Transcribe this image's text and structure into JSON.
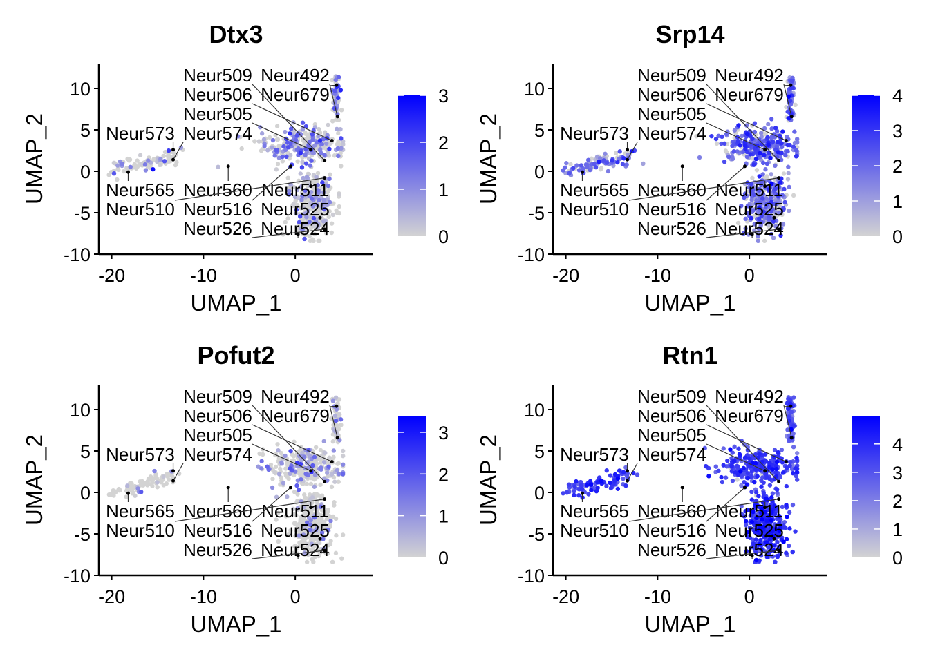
{
  "chart_data": [
    {
      "type": "scatter",
      "title": "Dtx3",
      "xlabel": "UMAP_1",
      "ylabel": "UMAP_2",
      "xlim": [
        -21.4,
        8.5
      ],
      "ylim": [
        -10,
        13
      ],
      "xticks": [
        -20,
        -10,
        0
      ],
      "yticks": [
        -10,
        -5,
        0,
        5,
        10
      ],
      "color_min": "#d3d3d3",
      "color_max": "#0000ff",
      "legend_ticks": [
        0,
        1,
        2,
        3
      ],
      "legend_max": 3.0,
      "legend": "right",
      "expression": {
        "arm": 0.5,
        "center": 0.9,
        "stalk": 0.9,
        "lower": 0.5
      },
      "density": {
        "arm": 0.35,
        "center": 0.6,
        "stalk": 0.6,
        "lower": 0.35
      }
    },
    {
      "type": "scatter",
      "title": "Srp14",
      "xlabel": "UMAP_1",
      "ylabel": "UMAP_2",
      "xlim": [
        -21.4,
        8.5
      ],
      "ylim": [
        -10,
        13
      ],
      "xticks": [
        -20,
        -10,
        0
      ],
      "yticks": [
        -10,
        -5,
        0,
        5,
        10
      ],
      "color_min": "#d3d3d3",
      "color_max": "#0000ff",
      "legend_ticks": [
        0,
        1,
        2,
        3,
        4
      ],
      "legend_max": 4.0,
      "legend": "right",
      "expression": {
        "arm": 1.8,
        "center": 2.2,
        "stalk": 2.0,
        "lower": 1.6
      },
      "density": {
        "arm": 0.75,
        "center": 0.85,
        "stalk": 0.8,
        "lower": 0.7
      }
    },
    {
      "type": "scatter",
      "title": "Pofut2",
      "xlabel": "UMAP_1",
      "ylabel": "UMAP_2",
      "xlim": [
        -21.4,
        8.5
      ],
      "ylim": [
        -10,
        13
      ],
      "xticks": [
        -20,
        -10,
        0
      ],
      "yticks": [
        -10,
        -5,
        0,
        5,
        10
      ],
      "color_min": "#d3d3d3",
      "color_max": "#0000ff",
      "legend_ticks": [
        0,
        1,
        2,
        3
      ],
      "legend_max": 3.38,
      "legend": "right",
      "expression": {
        "arm": 0.8,
        "center": 0.8,
        "stalk": 0.6,
        "lower": 0.6
      },
      "density": {
        "arm": 0.2,
        "center": 0.35,
        "stalk": 0.2,
        "lower": 0.15
      }
    },
    {
      "type": "scatter",
      "title": "Rtn1",
      "xlabel": "UMAP_1",
      "ylabel": "UMAP_2",
      "xlim": [
        -21.4,
        8.5
      ],
      "ylim": [
        -10,
        13
      ],
      "xticks": [
        -20,
        -10,
        0
      ],
      "yticks": [
        -10,
        -5,
        0,
        5,
        10
      ],
      "color_min": "#d3d3d3",
      "color_max": "#0000ff",
      "legend_ticks": [
        0,
        1,
        2,
        3,
        4
      ],
      "legend_max": 4.97,
      "legend": "right",
      "expression": {
        "arm": 3.3,
        "center": 3.3,
        "stalk": 3.0,
        "lower": 3.6
      },
      "density": {
        "arm": 0.97,
        "center": 0.97,
        "stalk": 0.95,
        "lower": 0.99
      }
    }
  ],
  "cluster_labels": [
    {
      "label": "Neur679",
      "x": 4.5,
      "y": 10.4
    },
    {
      "label": "Neur492",
      "x": 4.6,
      "y": 6.6
    },
    {
      "label": "Neur506",
      "x": 4.0,
      "y": 3.7
    },
    {
      "label": "Neur505",
      "x": 1.7,
      "y": 2.6
    },
    {
      "label": "Neur509",
      "x": 3.2,
      "y": 1.3
    },
    {
      "label": "Neur510",
      "x": 3.2,
      "y": -0.8
    },
    {
      "label": "Neur511",
      "x": 1.7,
      "y": -1.8
    },
    {
      "label": "Neur516",
      "x": -0.5,
      "y": 0.6
    },
    {
      "label": "Neur560",
      "x": -7.3,
      "y": 0.6
    },
    {
      "label": "Neur573",
      "x": -13.3,
      "y": 2.6
    },
    {
      "label": "Neur574",
      "x": -13.3,
      "y": 1.4
    },
    {
      "label": "Neur565",
      "x": -18.2,
      "y": -0.1
    },
    {
      "label": "Neur525",
      "x": 2.7,
      "y": -5.6
    },
    {
      "label": "Neur526",
      "x": 3.2,
      "y": -7.0
    },
    {
      "label": "Neur524",
      "x": 0.3,
      "y": -7.6
    }
  ]
}
